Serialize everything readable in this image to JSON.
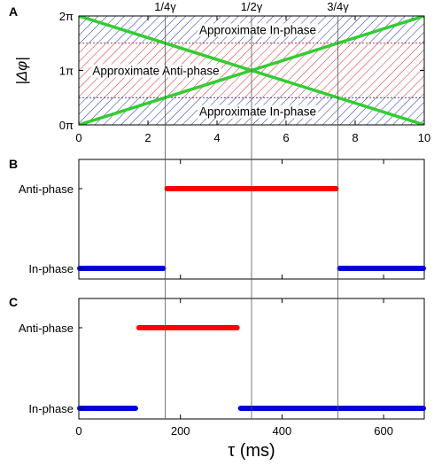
{
  "chart_data": [
    {
      "panel": "A",
      "type": "line",
      "ylabel": "|Δφ|",
      "xlim": [
        0,
        10
      ],
      "ylim": [
        0,
        2
      ],
      "x_ticks": [
        0,
        2,
        4,
        6,
        8,
        10
      ],
      "x_tick_labels": [
        "0",
        "2",
        "4",
        "6",
        "8",
        "10"
      ],
      "y_ticks": [
        0,
        1,
        2
      ],
      "y_tick_labels": [
        "0π",
        "1π",
        "2π"
      ],
      "top_marks": [
        {
          "x": 2.5,
          "label": "1/4γ"
        },
        {
          "x": 5,
          "label": "1/2γ"
        },
        {
          "x": 7.5,
          "label": "3/4γ"
        }
      ],
      "bands": [
        {
          "y0": 1.5,
          "y1": 2,
          "label": "Approximate In-phase",
          "color": "#1a2fa0"
        },
        {
          "y0": 0.5,
          "y1": 1.5,
          "label": "Approximate Anti-phase",
          "color": "#d42a2a"
        },
        {
          "y0": 0,
          "y1": 0.5,
          "label": "Approximate In-phase",
          "color": "#1a2fa0"
        }
      ],
      "series": [
        {
          "x": [
            0,
            10
          ],
          "y": [
            0,
            2
          ],
          "color": "#33cc33"
        },
        {
          "x": [
            0,
            10
          ],
          "y": [
            2,
            0
          ],
          "color": "#33cc33"
        }
      ],
      "grid": false
    },
    {
      "panel": "B",
      "type": "line",
      "categories": [
        "In-phase",
        "Anti-phase"
      ],
      "xlim": [
        0,
        680
      ],
      "segments": [
        {
          "state": "In-phase",
          "x0": 0,
          "x1": 170,
          "color": "#0000dd"
        },
        {
          "state": "Anti-phase",
          "x0": 170,
          "x1": 510,
          "color": "#ff0000"
        },
        {
          "state": "In-phase",
          "x0": 510,
          "x1": 680,
          "color": "#0000dd"
        }
      ]
    },
    {
      "panel": "C",
      "type": "line",
      "categories": [
        "In-phase",
        "Anti-phase"
      ],
      "xlim": [
        0,
        680
      ],
      "x_ticks": [
        0,
        200,
        400,
        600
      ],
      "x_tick_labels": [
        "0",
        "200",
        "400",
        "600"
      ],
      "xlabel": "τ (ms)",
      "segments": [
        {
          "state": "In-phase",
          "x0": 0,
          "x1": 115,
          "color": "#0000dd"
        },
        {
          "state": "Anti-phase",
          "x0": 115,
          "x1": 315,
          "color": "#ff0000"
        },
        {
          "state": "In-phase",
          "x0": 315,
          "x1": 680,
          "color": "#0000dd"
        }
      ]
    }
  ],
  "reference_lines_ms": [
    170,
    340,
    510
  ]
}
